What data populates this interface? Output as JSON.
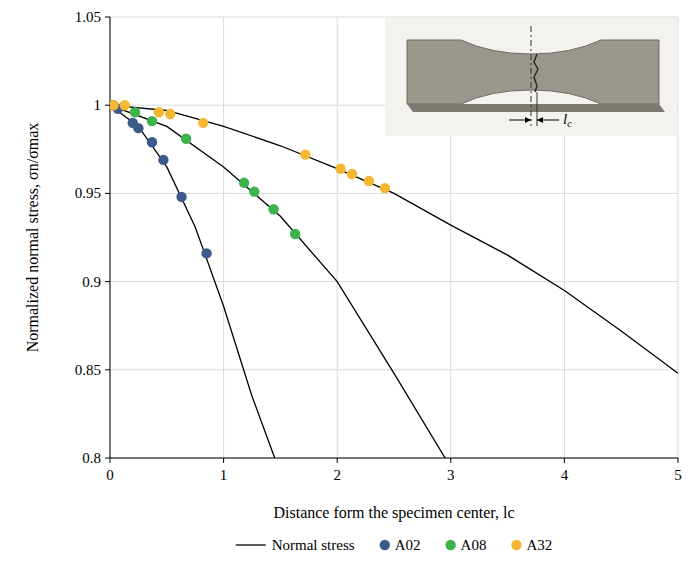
{
  "chart_data": {
    "type": "scatter",
    "xlabel": "Distance form the specimen center, lc",
    "ylabel": "Normalized normal stress, σn/σmax",
    "annotation": "lc",
    "xlim": [
      0,
      5
    ],
    "xticks": [
      0,
      1,
      2,
      3,
      4,
      5
    ],
    "ylim": [
      0.8,
      1.05
    ],
    "yticks": [
      0.8,
      0.85,
      0.9,
      0.95,
      1,
      1.05
    ],
    "grid": true,
    "legend": "bottom",
    "series": [
      {
        "name": "Normal stress",
        "type": "line",
        "color": "#000000",
        "line_style": "solid",
        "x": [
          0,
          0.25,
          0.5,
          0.75,
          1,
          1.25,
          1.45,
          null,
          0,
          0.5,
          1,
          1.5,
          2,
          2.5,
          2.95,
          null,
          0,
          0.5,
          1,
          1.5,
          2,
          2.5,
          3,
          3.5,
          4,
          4.5,
          5
        ],
        "values": [
          1,
          0.988,
          0.965,
          0.931,
          0.886,
          0.835,
          0.8,
          null,
          1,
          0.988,
          0.965,
          0.937,
          0.9,
          0.848,
          0.8,
          null,
          1,
          0.997,
          0.988,
          0.977,
          0.964,
          0.95,
          0.932,
          0.915,
          0.895,
          0.872,
          0.848
        ]
      },
      {
        "name": "A02",
        "type": "scatter",
        "marker": "circle",
        "color": "#3d5a8c",
        "x": [
          0.03,
          0.07,
          0.2,
          0.25,
          0.37,
          0.47,
          0.63,
          0.85
        ],
        "values": [
          1,
          0.998,
          0.99,
          0.987,
          0.979,
          0.969,
          0.948,
          0.916
        ]
      },
      {
        "name": "A08",
        "type": "scatter",
        "marker": "circle",
        "color": "#3cb44b",
        "x": [
          0.22,
          0.37,
          0.67,
          1.18,
          1.27,
          1.44,
          1.63
        ],
        "values": [
          0.996,
          0.991,
          0.981,
          0.956,
          0.951,
          0.941,
          0.927
        ]
      },
      {
        "name": "A32",
        "type": "scatter",
        "marker": "circle",
        "color": "#f5b731",
        "x": [
          0.03,
          0.13,
          0.43,
          0.53,
          0.82,
          1.72,
          2.03,
          2.13,
          2.28,
          2.42
        ],
        "values": [
          1,
          1,
          0.996,
          0.995,
          0.99,
          0.972,
          0.964,
          0.961,
          0.957,
          0.953
        ]
      }
    ]
  }
}
